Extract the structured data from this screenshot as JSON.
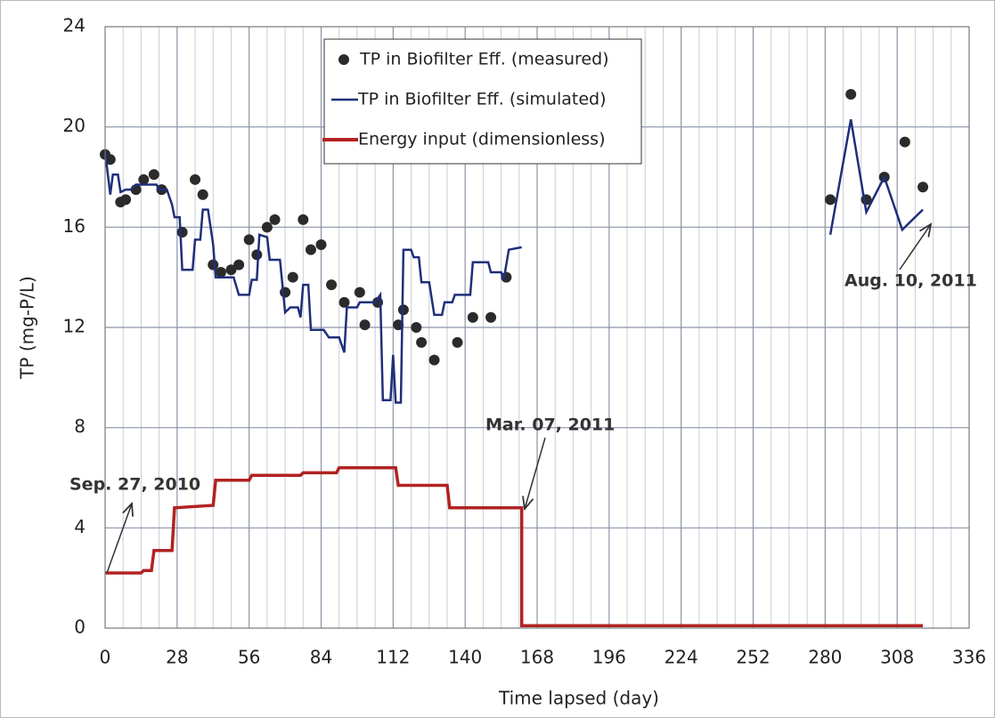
{
  "chart_data": {
    "type": "line",
    "xlabel": "Time lapsed (day)",
    "ylabel": "TP (mg-P/L)",
    "xlim": [
      0,
      336
    ],
    "ylim": [
      0,
      24
    ],
    "xticks": [
      0,
      28,
      56,
      84,
      112,
      140,
      168,
      196,
      224,
      252,
      280,
      308,
      336
    ],
    "x_minor_grid": [
      7,
      14,
      21,
      35,
      42,
      49,
      63,
      70,
      77,
      91,
      98,
      105,
      119,
      126,
      133,
      147,
      154,
      161,
      175,
      182,
      189,
      203,
      210,
      217,
      231,
      238,
      245,
      259,
      266,
      273,
      287,
      294,
      301,
      315,
      322,
      329
    ],
    "yticks": [
      0,
      4,
      8,
      12,
      16,
      20,
      24
    ],
    "grid": true,
    "series": [
      {
        "name": "TP in Biofilter Eff. (measured)",
        "type": "scatter",
        "color": "#2b2b2b",
        "x": [
          0,
          2,
          6,
          8,
          12,
          15,
          19,
          22,
          30,
          35,
          38,
          42,
          45,
          49,
          52,
          56,
          59,
          63,
          66,
          70,
          73,
          77,
          80,
          84,
          88,
          93,
          99,
          101,
          106,
          114,
          116,
          121,
          123,
          128,
          137,
          143,
          150,
          156,
          282,
          290,
          296,
          303,
          311,
          318
        ],
        "y": [
          18.9,
          18.7,
          17.0,
          17.1,
          17.5,
          17.9,
          18.1,
          17.5,
          15.8,
          17.9,
          17.3,
          14.5,
          14.2,
          14.3,
          14.5,
          15.5,
          14.9,
          16.0,
          16.3,
          13.4,
          14.0,
          16.3,
          15.1,
          15.3,
          13.7,
          13.0,
          13.4,
          12.1,
          13.0,
          12.1,
          12.7,
          12.0,
          11.4,
          10.7,
          11.4,
          12.4,
          12.4,
          14.0,
          17.1,
          21.3,
          17.1,
          18.0,
          19.4,
          17.6
        ]
      },
      {
        "name": "TP in Biofilter Eff. (simulated)",
        "type": "line",
        "color": "#1f2f7a",
        "x": [
          0,
          2,
          3,
          5,
          6,
          8,
          10,
          12,
          20,
          21,
          24,
          26,
          27,
          29,
          30,
          34,
          35,
          37,
          38,
          40,
          42,
          43,
          50,
          52,
          56,
          57,
          59,
          60,
          63,
          64,
          68,
          70,
          72,
          75,
          76,
          77,
          79,
          80,
          85,
          87,
          91,
          93,
          94,
          98,
          99,
          105,
          107,
          108,
          111,
          112,
          113,
          115,
          116,
          119,
          120,
          122,
          123,
          126,
          128,
          131,
          132,
          135,
          136,
          142,
          143,
          149,
          150,
          154,
          155,
          157,
          162,
          null,
          282,
          290,
          296,
          303,
          310,
          318
        ],
        "y": [
          19.0,
          17.3,
          18.1,
          18.1,
          17.4,
          17.5,
          17.5,
          17.7,
          17.7,
          17.5,
          17.5,
          16.9,
          16.4,
          16.4,
          14.3,
          14.3,
          15.5,
          15.5,
          16.7,
          16.7,
          15.3,
          14.0,
          14.0,
          13.3,
          13.3,
          13.9,
          13.9,
          15.7,
          15.6,
          14.7,
          14.7,
          12.6,
          12.8,
          12.8,
          12.4,
          13.7,
          13.7,
          11.9,
          11.9,
          11.6,
          11.6,
          11.0,
          12.8,
          12.8,
          13.0,
          13.0,
          13.3,
          9.1,
          9.1,
          10.9,
          9.0,
          9.0,
          15.1,
          15.1,
          14.8,
          14.8,
          13.8,
          13.8,
          12.5,
          12.5,
          13.0,
          13.0,
          13.3,
          13.3,
          14.6,
          14.6,
          14.2,
          14.2,
          13.9,
          15.1,
          15.2,
          null,
          15.7,
          20.3,
          16.6,
          18.0,
          15.9,
          16.7
        ]
      },
      {
        "name": "Energy input (dimensionless)",
        "type": "line",
        "color": "#b22222",
        "x": [
          0,
          14,
          15,
          18,
          19,
          26,
          27,
          42,
          43,
          56,
          57,
          76,
          77,
          90,
          91,
          113,
          114,
          133,
          134,
          162,
          162,
          318
        ],
        "y": [
          2.2,
          2.2,
          2.3,
          2.3,
          3.1,
          3.1,
          4.8,
          4.9,
          5.9,
          5.9,
          6.1,
          6.1,
          6.2,
          6.2,
          6.4,
          6.4,
          5.7,
          5.7,
          4.8,
          4.8,
          0.1,
          0.1
        ]
      }
    ],
    "annotations": [
      "Sep. 27, 2010",
      "Mar. 07, 2011",
      "Aug. 10, 2011"
    ]
  }
}
